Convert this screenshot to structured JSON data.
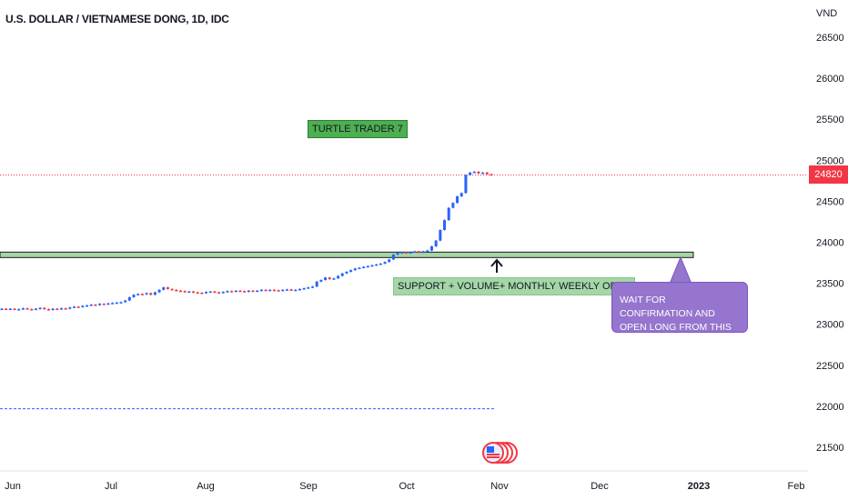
{
  "title": "U.S. DOLLAR / VIETNAMESE DONG, 1D, IDC",
  "unit": "VND",
  "last_price_label": "24820",
  "annotations": {
    "turtle": "TURTLE TRADER 7",
    "support": "SUPPORT + VOLUME+ MONTHLY WEEKLY OPEN",
    "wait_line1": "WAIT FOR CONFIRMATION AND",
    "wait_line2": "OPEN LONG FROM THIS ZONE"
  },
  "colors": {
    "up": "#2962ff",
    "down": "#f23645",
    "support_zone": "#a5d6a7",
    "purple_note": "#9575cd",
    "last_price_line": "#f23645",
    "lower_line": "#2962ff"
  },
  "chart_data": {
    "type": "candlestick",
    "title": "U.S. DOLLAR / VIETNAMESE DONG, 1D, IDC",
    "y_unit": "VND",
    "ylim": [
      21250,
      26800
    ],
    "y_ticks": [
      21500,
      22000,
      22500,
      23000,
      23500,
      24000,
      24500,
      25000,
      25500,
      26000,
      26500
    ],
    "x_ticks": [
      "Jun",
      "Jul",
      "Aug",
      "Sep",
      "Oct",
      "Nov",
      "Dec",
      "2023",
      "Feb"
    ],
    "last_price": 24820,
    "support_zone": [
      23830,
      23880
    ],
    "lower_reference_line": 21970,
    "series": [
      {
        "close": [
          23190,
          23185,
          23190,
          23180,
          23185,
          23195,
          23185,
          23180,
          23190,
          23200,
          23185,
          23175,
          23190,
          23185,
          23195,
          23190,
          23205,
          23215,
          23210,
          23225,
          23230,
          23240,
          23235,
          23250,
          23245,
          23255,
          23260,
          23265,
          23270,
          23290,
          23330,
          23360,
          23370,
          23365,
          23380,
          23360,
          23390,
          23420,
          23450,
          23430,
          23420,
          23410,
          23405,
          23395,
          23400,
          23390,
          23385,
          23380,
          23395,
          23400,
          23390,
          23385,
          23395,
          23405,
          23400,
          23410,
          23405,
          23400,
          23410,
          23405,
          23410,
          23420,
          23415,
          23420,
          23415,
          23410,
          23420,
          23425,
          23415,
          23420,
          23430,
          23440,
          23450,
          23460,
          23520,
          23540,
          23570,
          23550,
          23560,
          23590,
          23620,
          23640,
          23660,
          23680,
          23690,
          23700,
          23710,
          23720,
          23730,
          23740,
          23760,
          23790,
          23850,
          23870,
          23880,
          23870,
          23880,
          23890,
          23875,
          23890,
          23900,
          23950,
          24020,
          24150,
          24270,
          24420,
          24480,
          24560,
          24600,
          24820,
          24850,
          24860,
          24840,
          24850,
          24830,
          24820
        ]
      }
    ]
  }
}
